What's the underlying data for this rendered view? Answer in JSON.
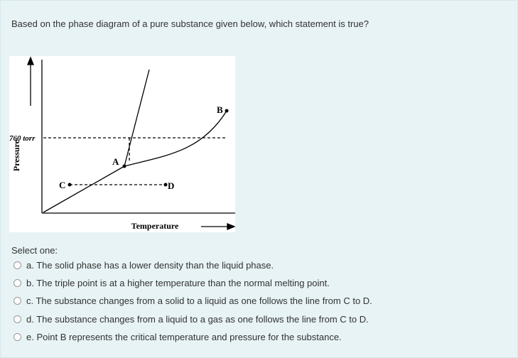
{
  "question": "Based on the phase diagram of a pure substance given below, which statement is true?",
  "diagram": {
    "y_axis_label": "Pressure",
    "x_axis_label": "Temperature",
    "reference_label": "760 torr",
    "points": [
      "A",
      "B",
      "C",
      "D"
    ]
  },
  "prompt": "Select one:",
  "options": [
    "a. The solid phase has a lower density than the liquid phase.",
    "b. The triple point is at a higher temperature than the normal melting point.",
    "c. The substance changes from a solid to a liquid as one follows the line from C to D.",
    "d. The substance changes from a liquid to a gas as one follows the line from C to D.",
    "e. Point B represents the critical temperature and pressure for the substance."
  ]
}
